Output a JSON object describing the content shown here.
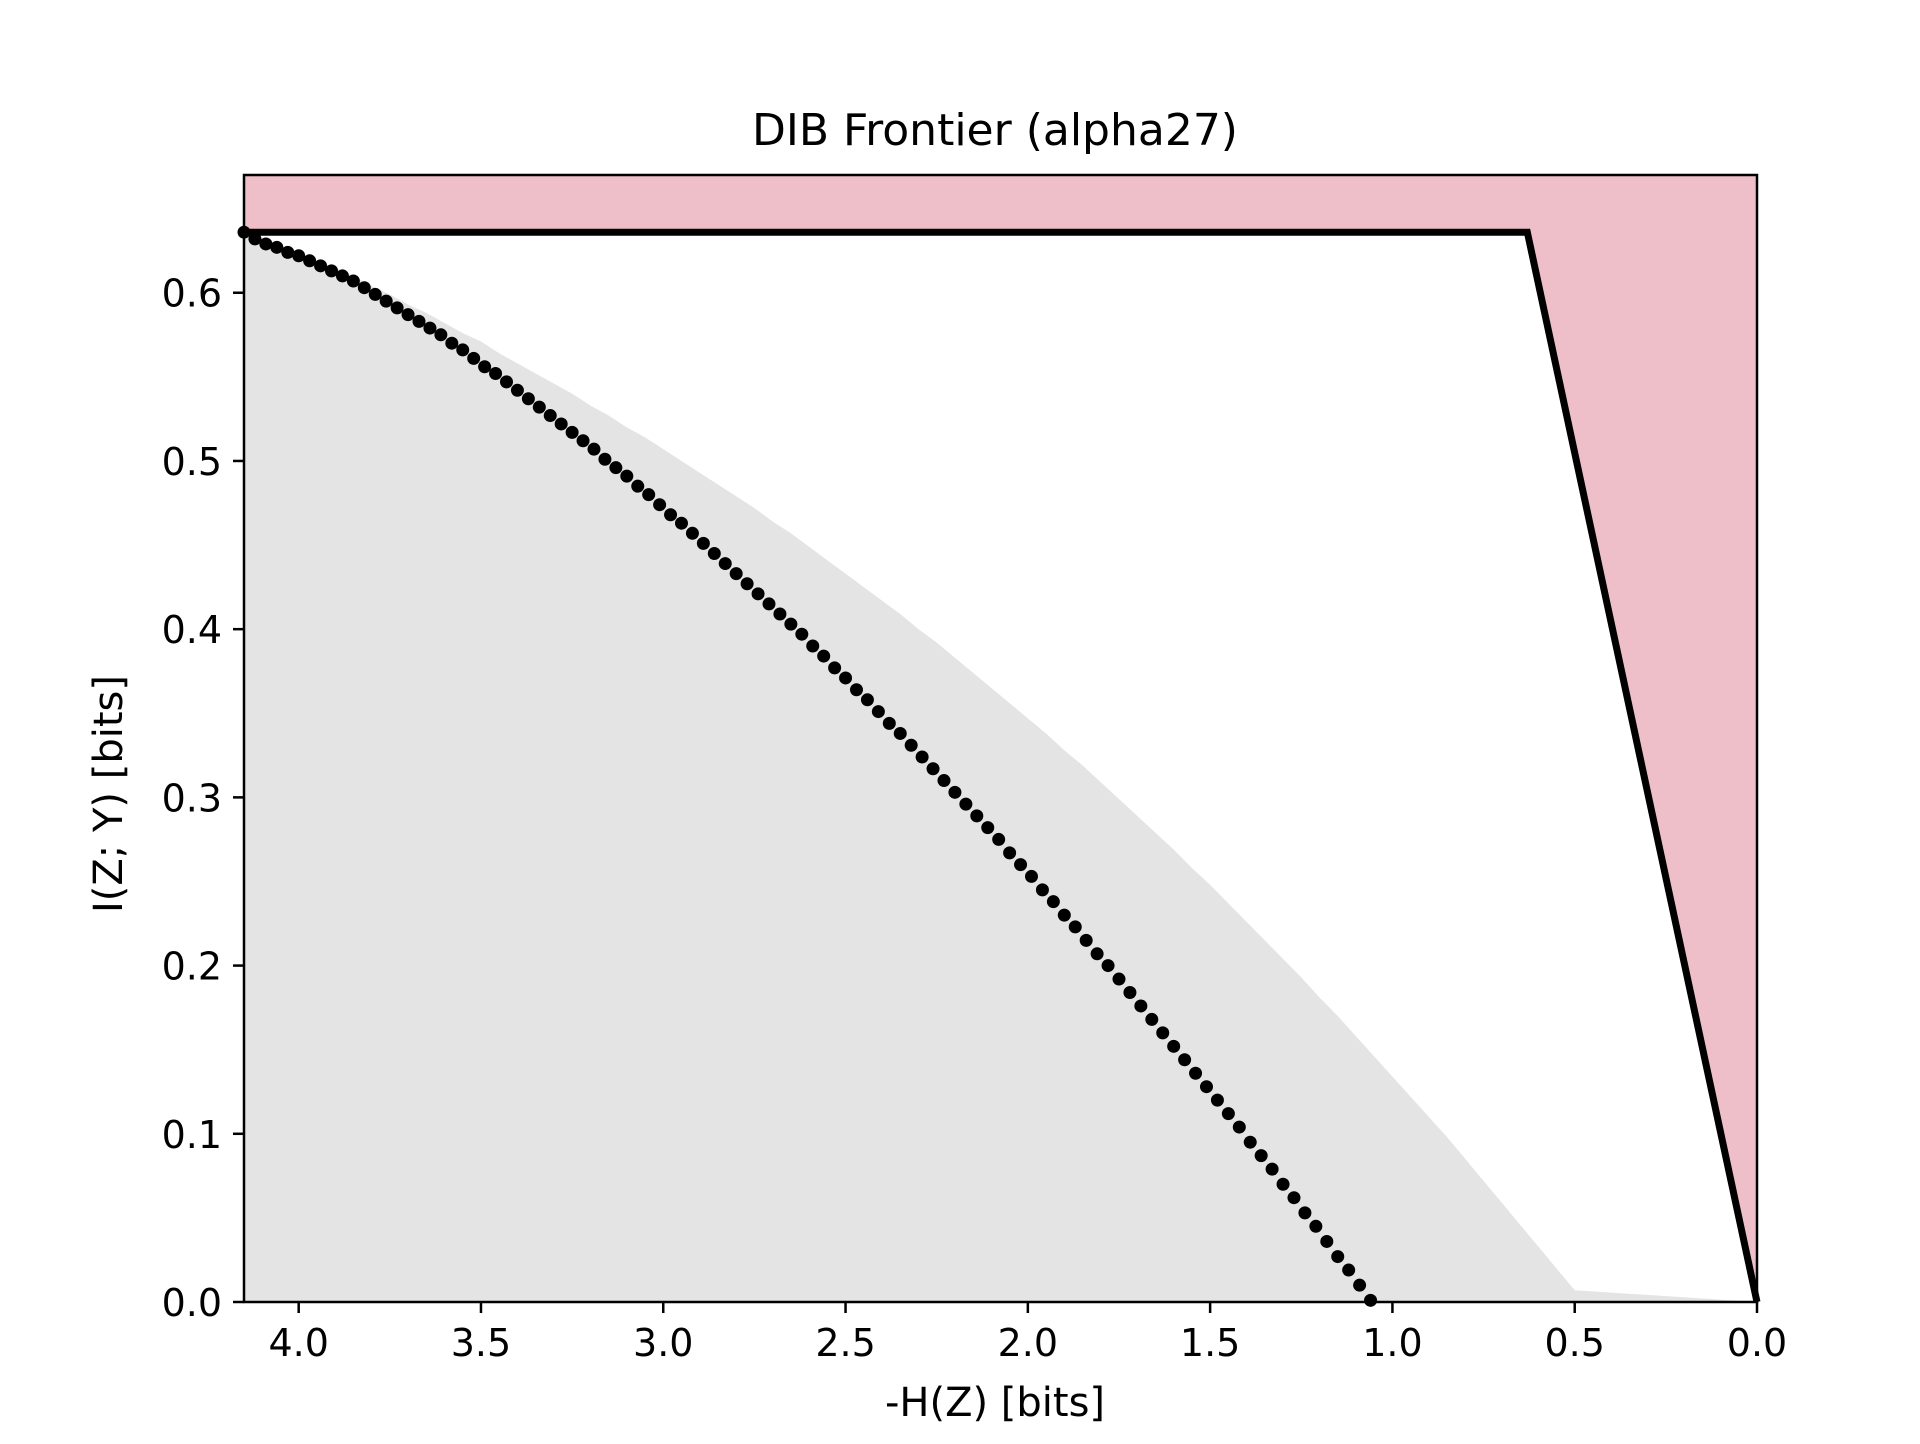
{
  "chart_data": {
    "type": "scatter",
    "title": "DIB Frontier (alpha27)",
    "xlabel": "-H(Z) [bits]",
    "ylabel": "I(Z; Y) [bits]",
    "x_reversed": true,
    "xlim": [
      4.15,
      0.0
    ],
    "ylim": [
      0.0,
      0.67
    ],
    "xticks": [
      4.0,
      3.5,
      3.0,
      2.5,
      2.0,
      1.5,
      1.0,
      0.5,
      0.0
    ],
    "xtick_labels": [
      "4.0",
      "3.5",
      "3.0",
      "2.5",
      "2.0",
      "1.5",
      "1.0",
      "0.5",
      "0.0"
    ],
    "yticks": [
      0.0,
      0.1,
      0.2,
      0.3,
      0.4,
      0.5,
      0.6
    ],
    "ytick_labels": [
      "0.0",
      "0.1",
      "0.2",
      "0.3",
      "0.4",
      "0.5",
      "0.6"
    ],
    "grid": false,
    "legend": "none",
    "bound": {
      "h_max": 4.15,
      "i_max": 0.636,
      "h_y": 0.63,
      "line": [
        [
          4.15,
          0.636
        ],
        [
          0.63,
          0.636
        ],
        [
          0.0,
          0.0
        ]
      ]
    },
    "frontier_points": [
      [
        4.15,
        0.636
      ],
      [
        4.1,
        0.632
      ],
      [
        4.05,
        0.628
      ],
      [
        4.0,
        0.624
      ],
      [
        3.95,
        0.619
      ],
      [
        3.9,
        0.615
      ],
      [
        3.85,
        0.61
      ],
      [
        3.8,
        0.604
      ],
      [
        3.75,
        0.599
      ],
      [
        3.7,
        0.593
      ],
      [
        3.65,
        0.588
      ],
      [
        3.6,
        0.582
      ],
      [
        3.55,
        0.576
      ],
      [
        3.5,
        0.571
      ],
      [
        3.45,
        0.564
      ],
      [
        3.4,
        0.558
      ],
      [
        3.35,
        0.552
      ],
      [
        3.3,
        0.546
      ],
      [
        3.25,
        0.54
      ],
      [
        3.2,
        0.533
      ],
      [
        3.15,
        0.527
      ],
      [
        3.1,
        0.52
      ],
      [
        3.05,
        0.514
      ],
      [
        3.0,
        0.507
      ],
      [
        2.95,
        0.5
      ],
      [
        2.9,
        0.493
      ],
      [
        2.85,
        0.486
      ],
      [
        2.8,
        0.479
      ],
      [
        2.75,
        0.472
      ],
      [
        2.7,
        0.464
      ],
      [
        2.65,
        0.457
      ],
      [
        2.6,
        0.449
      ],
      [
        2.55,
        0.441
      ],
      [
        2.5,
        0.433
      ],
      [
        2.45,
        0.425
      ],
      [
        2.4,
        0.417
      ],
      [
        2.35,
        0.409
      ],
      [
        2.3,
        0.4
      ],
      [
        2.25,
        0.392
      ],
      [
        2.2,
        0.383
      ],
      [
        2.15,
        0.374
      ],
      [
        2.1,
        0.365
      ],
      [
        2.05,
        0.356
      ],
      [
        2.0,
        0.347
      ],
      [
        1.95,
        0.338
      ],
      [
        1.9,
        0.328
      ],
      [
        1.85,
        0.319
      ],
      [
        1.8,
        0.309
      ],
      [
        1.75,
        0.299
      ],
      [
        1.7,
        0.289
      ],
      [
        1.65,
        0.279
      ],
      [
        1.6,
        0.269
      ],
      [
        1.55,
        0.258
      ],
      [
        1.5,
        0.248
      ],
      [
        1.45,
        0.237
      ],
      [
        1.4,
        0.226
      ],
      [
        1.35,
        0.215
      ],
      [
        1.3,
        0.204
      ],
      [
        1.25,
        0.193
      ],
      [
        1.2,
        0.181
      ],
      [
        1.15,
        0.17
      ],
      [
        1.1,
        0.158
      ],
      [
        1.05,
        0.146
      ],
      [
        1.0,
        0.134
      ],
      [
        0.95,
        0.122
      ],
      [
        0.9,
        0.11
      ],
      [
        0.85,
        0.098
      ],
      [
        0.8,
        0.085
      ],
      [
        0.75,
        0.072
      ],
      [
        0.7,
        0.059
      ],
      [
        0.65,
        0.046
      ],
      [
        0.6,
        0.033
      ],
      [
        0.55,
        0.02
      ],
      [
        0.5,
        0.007
      ],
      [
        0.0,
        0.0
      ]
    ],
    "series": [
      {
        "points": [
          [
            4.15,
            0.636
          ],
          [
            4.12,
            0.632
          ],
          [
            4.09,
            0.629
          ],
          [
            4.06,
            0.627
          ],
          [
            4.03,
            0.624
          ],
          [
            4.0,
            0.622
          ],
          [
            3.97,
            0.619
          ],
          [
            3.94,
            0.616
          ],
          [
            3.91,
            0.613
          ],
          [
            3.88,
            0.61
          ],
          [
            3.85,
            0.607
          ],
          [
            3.82,
            0.603
          ],
          [
            3.79,
            0.599
          ],
          [
            3.76,
            0.595
          ],
          [
            3.73,
            0.591
          ],
          [
            3.7,
            0.587
          ],
          [
            3.67,
            0.583
          ],
          [
            3.64,
            0.579
          ],
          [
            3.61,
            0.575
          ],
          [
            3.58,
            0.57
          ],
          [
            3.55,
            0.566
          ],
          [
            3.52,
            0.561
          ],
          [
            3.49,
            0.556
          ],
          [
            3.46,
            0.552
          ],
          [
            3.43,
            0.547
          ],
          [
            3.4,
            0.542
          ],
          [
            3.37,
            0.537
          ],
          [
            3.34,
            0.532
          ],
          [
            3.31,
            0.527
          ],
          [
            3.28,
            0.522
          ],
          [
            3.25,
            0.517
          ],
          [
            3.22,
            0.512
          ],
          [
            3.19,
            0.507
          ],
          [
            3.16,
            0.501
          ],
          [
            3.13,
            0.496
          ],
          [
            3.1,
            0.491
          ],
          [
            3.07,
            0.485
          ],
          [
            3.04,
            0.48
          ],
          [
            3.01,
            0.474
          ],
          [
            2.98,
            0.468
          ],
          [
            2.95,
            0.463
          ],
          [
            2.92,
            0.457
          ],
          [
            2.89,
            0.451
          ],
          [
            2.86,
            0.445
          ],
          [
            2.83,
            0.439
          ],
          [
            2.8,
            0.433
          ],
          [
            2.77,
            0.427
          ],
          [
            2.74,
            0.421
          ],
          [
            2.71,
            0.415
          ],
          [
            2.68,
            0.409
          ],
          [
            2.65,
            0.403
          ],
          [
            2.62,
            0.397
          ],
          [
            2.59,
            0.39
          ],
          [
            2.56,
            0.384
          ],
          [
            2.53,
            0.377
          ],
          [
            2.5,
            0.371
          ],
          [
            2.47,
            0.364
          ],
          [
            2.44,
            0.358
          ],
          [
            2.41,
            0.351
          ],
          [
            2.38,
            0.344
          ],
          [
            2.35,
            0.338
          ],
          [
            2.32,
            0.331
          ],
          [
            2.29,
            0.324
          ],
          [
            2.26,
            0.317
          ],
          [
            2.23,
            0.31
          ],
          [
            2.2,
            0.303
          ],
          [
            2.17,
            0.296
          ],
          [
            2.14,
            0.289
          ],
          [
            2.11,
            0.282
          ],
          [
            2.08,
            0.275
          ],
          [
            2.05,
            0.267
          ],
          [
            2.02,
            0.26
          ],
          [
            1.99,
            0.253
          ],
          [
            1.96,
            0.245
          ],
          [
            1.93,
            0.238
          ],
          [
            1.9,
            0.23
          ],
          [
            1.87,
            0.223
          ],
          [
            1.84,
            0.215
          ],
          [
            1.81,
            0.207
          ],
          [
            1.78,
            0.2
          ],
          [
            1.75,
            0.192
          ],
          [
            1.72,
            0.184
          ],
          [
            1.69,
            0.176
          ],
          [
            1.66,
            0.168
          ],
          [
            1.63,
            0.16
          ],
          [
            1.6,
            0.152
          ],
          [
            1.57,
            0.144
          ],
          [
            1.54,
            0.136
          ],
          [
            1.51,
            0.128
          ],
          [
            1.48,
            0.12
          ],
          [
            1.45,
            0.112
          ],
          [
            1.42,
            0.104
          ],
          [
            1.39,
            0.095
          ],
          [
            1.36,
            0.087
          ],
          [
            1.33,
            0.079
          ],
          [
            1.3,
            0.07
          ],
          [
            1.27,
            0.062
          ],
          [
            1.24,
            0.053
          ],
          [
            1.21,
            0.045
          ],
          [
            1.18,
            0.036
          ],
          [
            1.15,
            0.027
          ],
          [
            1.12,
            0.019
          ],
          [
            1.09,
            0.01
          ],
          [
            1.06,
            0.001
          ]
        ]
      }
    ]
  }
}
